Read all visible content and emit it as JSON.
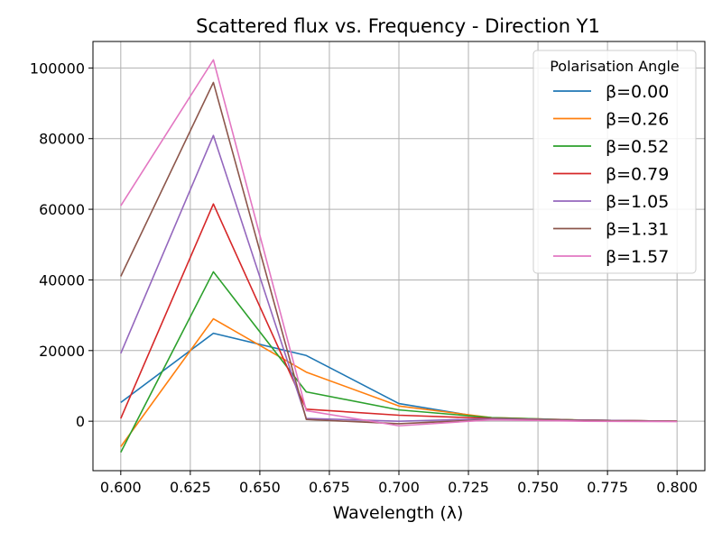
{
  "chart_data": {
    "type": "line",
    "title": "Scattered flux vs. Frequency - Direction Y1",
    "xlabel": "Wavelength (λ)",
    "ylabel": "",
    "xlim": [
      0.59,
      0.81
    ],
    "ylim": [
      -14000,
      107500
    ],
    "xticks": [
      "0.600",
      "0.625",
      "0.650",
      "0.675",
      "0.700",
      "0.725",
      "0.750",
      "0.775",
      "0.800"
    ],
    "yticks": [
      "0",
      "20000",
      "40000",
      "60000",
      "80000",
      "100000"
    ],
    "grid": true,
    "legend": {
      "title": "Polarisation Angle",
      "placement": "top-right"
    },
    "x": [
      0.6,
      0.6333,
      0.6667,
      0.7,
      0.7333,
      0.7667,
      0.8
    ],
    "series": [
      {
        "name": "β=0.00",
        "color": "#1f77b4",
        "values": [
          5300,
          24900,
          18600,
          5000,
          700,
          300,
          0
        ]
      },
      {
        "name": "β=0.26",
        "color": "#ff7f0e",
        "values": [
          -7200,
          29000,
          13900,
          4300,
          1000,
          300,
          0
        ]
      },
      {
        "name": "β=0.52",
        "color": "#2ca02c",
        "values": [
          -8800,
          42300,
          8300,
          3200,
          1000,
          300,
          0
        ]
      },
      {
        "name": "β=0.79",
        "color": "#d62728",
        "values": [
          800,
          61500,
          3400,
          1700,
          800,
          300,
          0
        ]
      },
      {
        "name": "β=1.05",
        "color": "#9467bd",
        "values": [
          19200,
          80900,
          800,
          0,
          700,
          300,
          0
        ]
      },
      {
        "name": "β=1.31",
        "color": "#8c564b",
        "values": [
          41000,
          95900,
          500,
          -700,
          500,
          200,
          0
        ]
      },
      {
        "name": "β=1.57",
        "color": "#e377c2",
        "values": [
          61000,
          102300,
          3000,
          -1300,
          400,
          0,
          -100
        ]
      }
    ]
  }
}
